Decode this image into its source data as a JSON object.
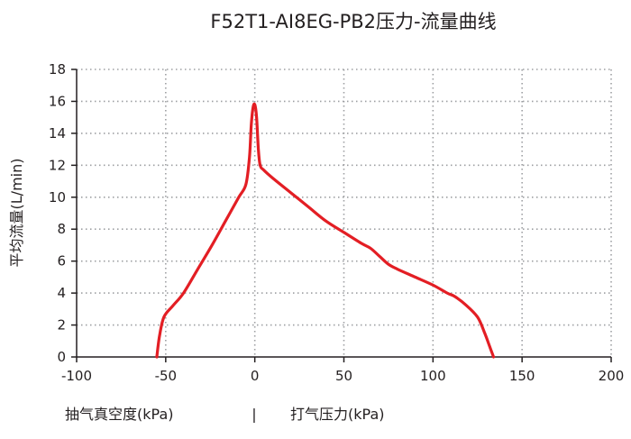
{
  "chart_data": {
    "type": "line",
    "title": "F52T1-AI8EG-PB2压力-流量曲线",
    "ylabel": "平均流量(L/min)",
    "xlabel_left": "抽气真空度(kPa)",
    "xlabel_separator": "|",
    "xlabel_right": "打气压力(kPa)",
    "xlim": [
      -100,
      200
    ],
    "ylim": [
      0,
      18
    ],
    "xticks": [
      -100,
      -50,
      0,
      50,
      100,
      150,
      200
    ],
    "yticks": [
      0,
      2,
      4,
      6,
      8,
      10,
      12,
      14,
      16,
      18
    ],
    "grid": true,
    "legend": "none",
    "color": "#e31e24",
    "series": [
      {
        "x": [
          -55,
          -53.5,
          -51,
          -46,
          -40,
          -32,
          -24,
          -16,
          -9,
          -5,
          -3,
          -2,
          -1,
          0,
          1,
          2,
          3,
          5,
          10,
          20,
          30,
          40,
          50,
          60,
          65,
          70,
          75,
          80,
          90,
          100,
          108,
          112,
          118,
          125,
          129,
          132,
          134
        ],
        "y": [
          0,
          1.3,
          2.5,
          3.2,
          4.0,
          5.5,
          7.0,
          8.6,
          10.0,
          10.8,
          12.5,
          14.5,
          15.6,
          15.8,
          15.0,
          13.0,
          12.0,
          11.7,
          11.2,
          10.3,
          9.4,
          8.5,
          7.8,
          7.1,
          6.8,
          6.3,
          5.8,
          5.5,
          5.0,
          4.5,
          4.0,
          3.8,
          3.3,
          2.5,
          1.5,
          0.6,
          0
        ]
      }
    ]
  }
}
